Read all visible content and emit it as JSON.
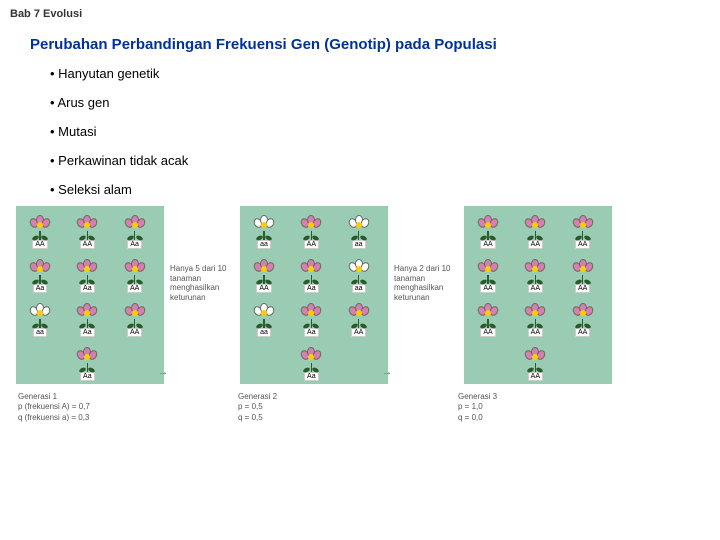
{
  "header": "Bab 7 Evolusi",
  "title": "Perubahan Perbandingan Frekuensi Gen (Genotip) pada Populasi",
  "bullets": [
    "Hanyutan genetik",
    "Arus gen",
    "Mutasi",
    "Perkawinan tidak acak",
    "Seleksi alam"
  ],
  "captions": {
    "c1": "Hanya 5 dari 10 tanaman menghasilkan keturunan",
    "c2": "Hanya 2 dari 10 tanaman menghasilkan keturunan"
  },
  "panels": [
    {
      "flowers": [
        {
          "g": "AA",
          "c": "pink"
        },
        {
          "g": "AA",
          "c": "pink"
        },
        {
          "g": "Aa",
          "c": "pink"
        },
        {
          "g": "Aa",
          "c": "pink"
        },
        {
          "g": "Aa",
          "c": "pink"
        },
        {
          "g": "AA",
          "c": "pink"
        },
        {
          "g": "aa",
          "c": "white"
        },
        {
          "g": "Aa",
          "c": "pink"
        },
        {
          "g": "AA",
          "c": "pink"
        },
        {
          "g": "",
          "c": ""
        },
        {
          "g": "Aa",
          "c": "pink"
        },
        {
          "g": "",
          "c": ""
        }
      ]
    },
    {
      "flowers": [
        {
          "g": "aa",
          "c": "white"
        },
        {
          "g": "AA",
          "c": "pink"
        },
        {
          "g": "aa",
          "c": "white"
        },
        {
          "g": "AA",
          "c": "pink"
        },
        {
          "g": "Aa",
          "c": "pink"
        },
        {
          "g": "aa",
          "c": "white"
        },
        {
          "g": "aa",
          "c": "white"
        },
        {
          "g": "Aa",
          "c": "pink"
        },
        {
          "g": "AA",
          "c": "pink"
        },
        {
          "g": "",
          "c": ""
        },
        {
          "g": "Aa",
          "c": "pink"
        },
        {
          "g": "",
          "c": ""
        }
      ]
    },
    {
      "flowers": [
        {
          "g": "AA",
          "c": "pink"
        },
        {
          "g": "AA",
          "c": "pink"
        },
        {
          "g": "AA",
          "c": "pink"
        },
        {
          "g": "AA",
          "c": "pink"
        },
        {
          "g": "AA",
          "c": "pink"
        },
        {
          "g": "AA",
          "c": "pink"
        },
        {
          "g": "AA",
          "c": "pink"
        },
        {
          "g": "AA",
          "c": "pink"
        },
        {
          "g": "AA",
          "c": "pink"
        },
        {
          "g": "",
          "c": ""
        },
        {
          "g": "AA",
          "c": "pink"
        },
        {
          "g": "",
          "c": ""
        }
      ]
    }
  ],
  "legends": [
    {
      "g": "Generasi 1",
      "l1": "p (frekuensi A) = 0,7",
      "l2": "q (frekuensi a) = 0,3"
    },
    {
      "g": "Generasi 2",
      "l1": "p = 0,5",
      "l2": "q = 0,5"
    },
    {
      "g": "Generasi 3",
      "l1": "p = 1,0",
      "l2": "q = 0,0"
    }
  ]
}
